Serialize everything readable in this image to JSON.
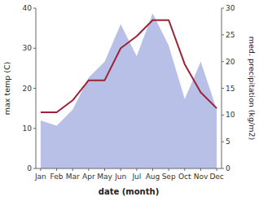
{
  "chart_data": {
    "type": "line",
    "categories": [
      "Jan",
      "Feb",
      "Mar",
      "Apr",
      "May",
      "Jun",
      "Jul",
      "Aug",
      "Sep",
      "Oct",
      "Nov",
      "Dec"
    ],
    "series": [
      {
        "type": "area",
        "axis": "y2",
        "color": "#b8c0e8",
        "values": [
          9,
          8,
          11,
          17,
          20,
          27,
          21,
          29,
          23,
          13,
          20,
          11
        ]
      },
      {
        "type": "line",
        "color": "#9b2335",
        "values": [
          14,
          14,
          17,
          22,
          22,
          30,
          33,
          37,
          37,
          26,
          19,
          15
        ]
      }
    ],
    "xlabel": "date (month)",
    "ylabel": "max temp (C)",
    "y2label": "med. precipitation (kg/m2)",
    "ylim": [
      0,
      40
    ],
    "yticks": [
      0,
      10,
      20,
      30,
      40
    ],
    "y2lim": [
      0,
      30
    ],
    "y2ticks": [
      0,
      5,
      10,
      15,
      20,
      25,
      30
    ],
    "grid": false
  }
}
